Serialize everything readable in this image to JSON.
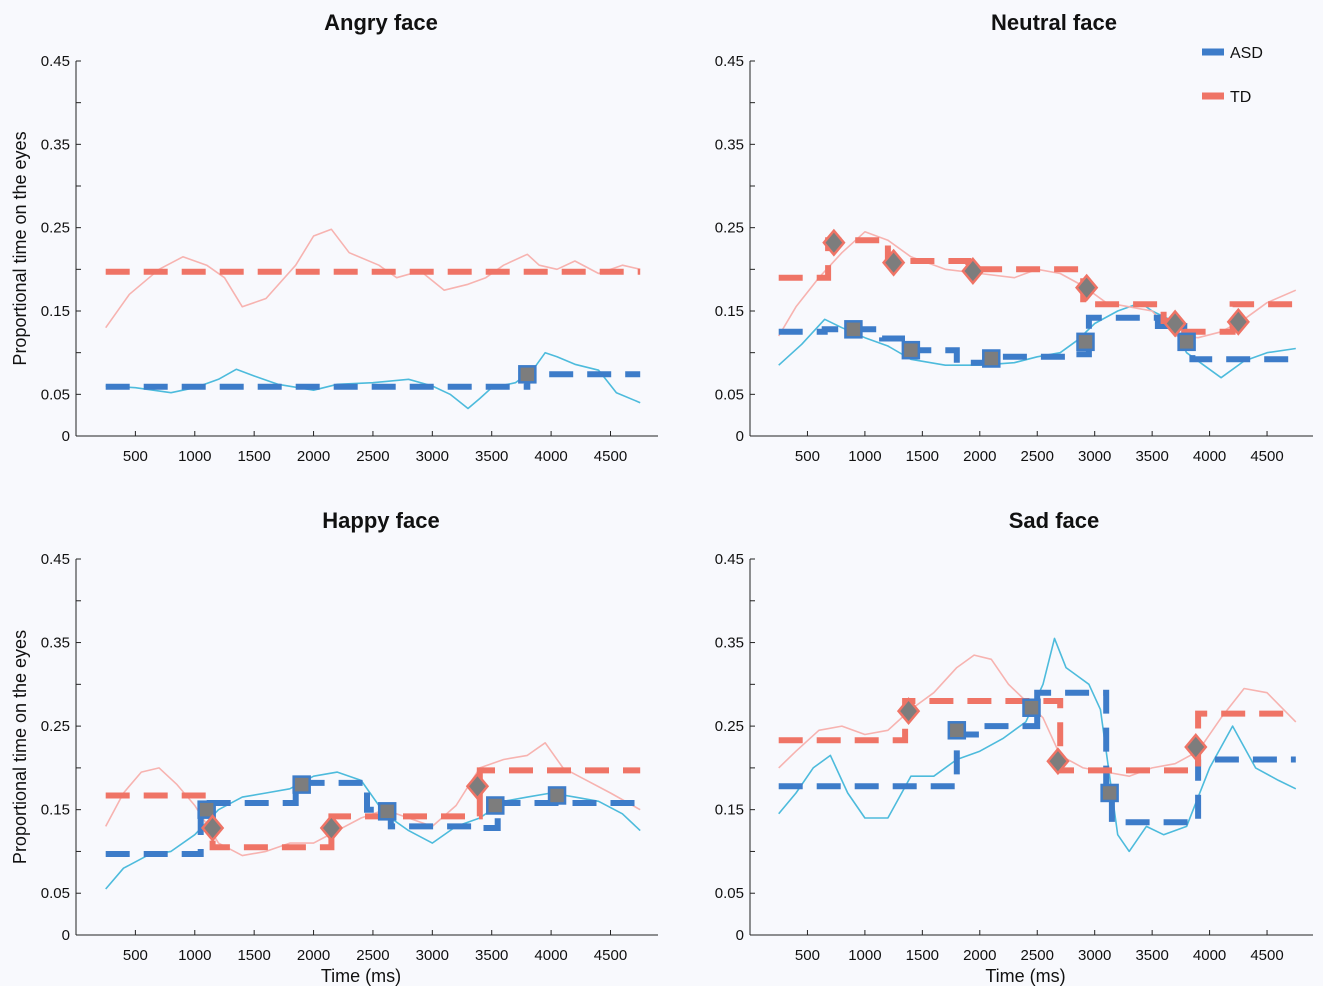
{
  "figure": {
    "ylabel": "Proportional time on the eyes",
    "xlabel": "Time (ms)",
    "legend": {
      "placement": "top-right of Neutral face panel",
      "entries": [
        {
          "name": "ASD",
          "color": "#3d7cc9"
        },
        {
          "name": "TD",
          "color": "#ef7466"
        }
      ]
    },
    "colors": {
      "asd_step": "#3d7cc9",
      "asd_raw": "#4dbbdc",
      "td_step": "#ef7466",
      "td_raw": "#f7b3b0",
      "marker_fill": "#7d7d7d",
      "background": "#f8f9fd"
    }
  },
  "chart_data": [
    {
      "type": "line",
      "title": "Angry face",
      "xlabel": "",
      "ylabel": "Proportional time on the eyes",
      "xlim": [
        0,
        4900
      ],
      "ylim": [
        0,
        0.45
      ],
      "xticks": [
        500,
        1000,
        1500,
        2000,
        2500,
        3000,
        3500,
        4000,
        4500
      ],
      "yticks": [
        0,
        0.05,
        0.15,
        0.25,
        0.35,
        0.45
      ],
      "grid": false,
      "series": [
        {
          "name": "ASD",
          "style": "dashed-step",
          "x": [
            250,
            3800,
            3800,
            4750
          ],
          "y": [
            0.059,
            0.059,
            0.074,
            0.074
          ],
          "markers": [
            {
              "x": 3800,
              "y": 0.074,
              "shape": "square"
            }
          ]
        },
        {
          "name": "TD",
          "style": "dashed-step",
          "x": [
            250,
            4750
          ],
          "y": [
            0.197,
            0.197
          ],
          "markers": []
        },
        {
          "style": "raw",
          "group": "ASD",
          "x": [
            250,
            500,
            800,
            1000,
            1200,
            1350,
            1500,
            1700,
            2000,
            2200,
            2500,
            2800,
            3000,
            3150,
            3300,
            3400,
            3500,
            3700,
            3850,
            3950,
            4050,
            4200,
            4400,
            4550,
            4750
          ],
          "y": [
            0.06,
            0.058,
            0.052,
            0.058,
            0.068,
            0.08,
            0.072,
            0.062,
            0.055,
            0.062,
            0.064,
            0.068,
            0.06,
            0.05,
            0.033,
            0.045,
            0.058,
            0.064,
            0.08,
            0.1,
            0.095,
            0.086,
            0.079,
            0.052,
            0.04
          ]
        },
        {
          "style": "raw",
          "group": "TD",
          "x": [
            250,
            450,
            700,
            900,
            1100,
            1250,
            1400,
            1600,
            1850,
            2000,
            2150,
            2300,
            2550,
            2700,
            2900,
            3100,
            3300,
            3450,
            3600,
            3800,
            3900,
            4050,
            4200,
            4400,
            4600,
            4750
          ],
          "y": [
            0.13,
            0.17,
            0.2,
            0.215,
            0.205,
            0.19,
            0.155,
            0.165,
            0.205,
            0.24,
            0.248,
            0.22,
            0.205,
            0.19,
            0.198,
            0.175,
            0.182,
            0.19,
            0.205,
            0.218,
            0.205,
            0.2,
            0.21,
            0.195,
            0.205,
            0.2
          ]
        }
      ]
    },
    {
      "type": "line",
      "title": "Neutral face",
      "xlabel": "",
      "ylabel": "",
      "xlim": [
        0,
        4900
      ],
      "ylim": [
        0,
        0.45
      ],
      "xticks": [
        500,
        1000,
        1500,
        2000,
        2500,
        3000,
        3500,
        4000,
        4500
      ],
      "yticks": [
        0,
        0.05,
        0.15,
        0.25,
        0.35,
        0.45
      ],
      "grid": false,
      "series": [
        {
          "name": "ASD",
          "style": "dashed-step",
          "x": [
            250,
            650,
            650,
            1150,
            1150,
            1400,
            1400,
            1800,
            1800,
            2100,
            2100,
            2800,
            2800,
            2950,
            2950,
            3550,
            3550,
            3780,
            3780,
            3850,
            3850,
            4750
          ],
          "y": [
            0.125,
            0.125,
            0.128,
            0.128,
            0.117,
            0.117,
            0.103,
            0.103,
            0.088,
            0.088,
            0.095,
            0.095,
            0.098,
            0.098,
            0.142,
            0.142,
            0.132,
            0.132,
            0.115,
            0.115,
            0.092,
            0.092
          ],
          "markers": [
            {
              "x": 900,
              "y": 0.128,
              "shape": "square"
            },
            {
              "x": 1400,
              "y": 0.103,
              "shape": "square"
            },
            {
              "x": 2100,
              "y": 0.093,
              "shape": "square"
            },
            {
              "x": 2920,
              "y": 0.113,
              "shape": "square"
            },
            {
              "x": 3800,
              "y": 0.113,
              "shape": "square"
            }
          ]
        },
        {
          "name": "TD",
          "style": "dashed-step",
          "x": [
            250,
            680,
            680,
            1200,
            1200,
            1900,
            1900,
            2900,
            2900,
            3600,
            3600,
            3780,
            3780,
            4200,
            4200,
            4750
          ],
          "y": [
            0.19,
            0.19,
            0.235,
            0.235,
            0.21,
            0.21,
            0.2,
            0.2,
            0.158,
            0.158,
            0.138,
            0.138,
            0.125,
            0.125,
            0.158,
            0.158
          ],
          "markers": [
            {
              "x": 730,
              "y": 0.232,
              "shape": "diamond"
            },
            {
              "x": 1250,
              "y": 0.208,
              "shape": "diamond"
            },
            {
              "x": 1940,
              "y": 0.198,
              "shape": "diamond"
            },
            {
              "x": 2930,
              "y": 0.178,
              "shape": "diamond"
            },
            {
              "x": 3700,
              "y": 0.135,
              "shape": "diamond"
            },
            {
              "x": 4250,
              "y": 0.137,
              "shape": "diamond"
            }
          ]
        },
        {
          "style": "raw",
          "group": "ASD",
          "x": [
            250,
            450,
            650,
            800,
            1000,
            1200,
            1400,
            1700,
            2000,
            2300,
            2500,
            2700,
            2850,
            3000,
            3200,
            3400,
            3500,
            3650,
            3800,
            3950,
            4100,
            4300,
            4500,
            4750
          ],
          "y": [
            0.085,
            0.11,
            0.14,
            0.13,
            0.118,
            0.108,
            0.092,
            0.085,
            0.085,
            0.088,
            0.095,
            0.1,
            0.115,
            0.135,
            0.15,
            0.16,
            0.15,
            0.14,
            0.1,
            0.085,
            0.07,
            0.09,
            0.1,
            0.105
          ]
        },
        {
          "style": "raw",
          "group": "TD",
          "x": [
            250,
            400,
            600,
            800,
            1000,
            1200,
            1400,
            1700,
            2000,
            2300,
            2500,
            2700,
            2900,
            3100,
            3300,
            3500,
            3700,
            3900,
            4100,
            4300,
            4500,
            4750
          ],
          "y": [
            0.12,
            0.155,
            0.19,
            0.22,
            0.245,
            0.235,
            0.215,
            0.2,
            0.195,
            0.19,
            0.2,
            0.195,
            0.18,
            0.16,
            0.155,
            0.15,
            0.12,
            0.118,
            0.125,
            0.14,
            0.16,
            0.175
          ]
        }
      ]
    },
    {
      "type": "line",
      "title": "Happy face",
      "xlabel": "Time (ms)",
      "ylabel": "Proportional time on the eyes",
      "xlim": [
        0,
        4900
      ],
      "ylim": [
        0,
        0.45
      ],
      "xticks": [
        500,
        1000,
        1500,
        2000,
        2500,
        3000,
        3500,
        4000,
        4500
      ],
      "yticks": [
        0,
        0.05,
        0.15,
        0.25,
        0.35,
        0.45
      ],
      "grid": false,
      "series": [
        {
          "name": "ASD",
          "style": "dashed-step",
          "x": [
            250,
            1050,
            1050,
            1650,
            1650,
            1850,
            1850,
            2450,
            2450,
            2650,
            2650,
            2850,
            2850,
            3350,
            3350,
            3550,
            3550,
            4750
          ],
          "y": [
            0.097,
            0.097,
            0.158,
            0.158,
            0.158,
            0.158,
            0.182,
            0.182,
            0.15,
            0.15,
            0.13,
            0.13,
            0.13,
            0.13,
            0.128,
            0.128,
            0.158,
            0.158
          ],
          "markers": [
            {
              "x": 1100,
              "y": 0.15,
              "shape": "square"
            },
            {
              "x": 1900,
              "y": 0.18,
              "shape": "square"
            },
            {
              "x": 2620,
              "y": 0.148,
              "shape": "square"
            },
            {
              "x": 3530,
              "y": 0.155,
              "shape": "square"
            },
            {
              "x": 4050,
              "y": 0.167,
              "shape": "square"
            }
          ]
        },
        {
          "name": "TD",
          "style": "dashed-step",
          "x": [
            250,
            1150,
            1150,
            2150,
            2150,
            3400,
            3400,
            4750
          ],
          "y": [
            0.167,
            0.167,
            0.105,
            0.105,
            0.142,
            0.142,
            0.197,
            0.197
          ],
          "markers": [
            {
              "x": 1150,
              "y": 0.128,
              "shape": "diamond"
            },
            {
              "x": 2150,
              "y": 0.128,
              "shape": "diamond"
            },
            {
              "x": 3380,
              "y": 0.178,
              "shape": "diamond"
            }
          ]
        },
        {
          "style": "raw",
          "group": "ASD",
          "x": [
            250,
            400,
            600,
            800,
            1000,
            1200,
            1400,
            1600,
            1800,
            2000,
            2200,
            2400,
            2600,
            2800,
            3000,
            3200,
            3400,
            3600,
            3800,
            4000,
            4200,
            4400,
            4600,
            4750
          ],
          "y": [
            0.055,
            0.08,
            0.095,
            0.1,
            0.12,
            0.15,
            0.165,
            0.17,
            0.175,
            0.19,
            0.195,
            0.185,
            0.145,
            0.125,
            0.11,
            0.13,
            0.14,
            0.16,
            0.165,
            0.17,
            0.165,
            0.16,
            0.145,
            0.125
          ]
        },
        {
          "style": "raw",
          "group": "TD",
          "x": [
            250,
            400,
            550,
            700,
            850,
            1000,
            1200,
            1400,
            1600,
            1800,
            2000,
            2200,
            2400,
            2600,
            2800,
            3000,
            3200,
            3400,
            3600,
            3800,
            3950,
            4100,
            4300,
            4500,
            4750
          ],
          "y": [
            0.13,
            0.17,
            0.195,
            0.2,
            0.18,
            0.155,
            0.11,
            0.095,
            0.1,
            0.11,
            0.11,
            0.125,
            0.14,
            0.15,
            0.14,
            0.13,
            0.155,
            0.2,
            0.21,
            0.215,
            0.23,
            0.2,
            0.185,
            0.17,
            0.15
          ]
        }
      ]
    },
    {
      "type": "line",
      "title": "Sad face",
      "xlabel": "Time (ms)",
      "ylabel": "",
      "xlim": [
        0,
        4900
      ],
      "ylim": [
        0,
        0.45
      ],
      "xticks": [
        500,
        1000,
        1500,
        2000,
        2500,
        3000,
        3500,
        4000,
        4500
      ],
      "yticks": [
        0,
        0.05,
        0.15,
        0.25,
        0.35,
        0.45
      ],
      "grid": false,
      "series": [
        {
          "name": "ASD",
          "style": "dashed-step",
          "x": [
            250,
            1800,
            1800,
            2000,
            2000,
            2500,
            2500,
            3100,
            3100,
            3150,
            3150,
            3900,
            3900,
            4750
          ],
          "y": [
            0.178,
            0.178,
            0.24,
            0.24,
            0.25,
            0.25,
            0.29,
            0.29,
            0.168,
            0.168,
            0.135,
            0.135,
            0.21,
            0.21
          ],
          "markers": [
            {
              "x": 1800,
              "y": 0.245,
              "shape": "square"
            },
            {
              "x": 2450,
              "y": 0.272,
              "shape": "square"
            },
            {
              "x": 3130,
              "y": 0.17,
              "shape": "square"
            }
          ]
        },
        {
          "name": "TD",
          "style": "dashed-step",
          "x": [
            250,
            1350,
            1350,
            2700,
            2700,
            3900,
            3900,
            4750
          ],
          "y": [
            0.233,
            0.233,
            0.28,
            0.28,
            0.197,
            0.197,
            0.265,
            0.265
          ],
          "markers": [
            {
              "x": 1380,
              "y": 0.268,
              "shape": "diamond"
            },
            {
              "x": 2680,
              "y": 0.208,
              "shape": "diamond"
            },
            {
              "x": 3880,
              "y": 0.225,
              "shape": "diamond"
            }
          ]
        },
        {
          "style": "raw",
          "group": "ASD",
          "x": [
            250,
            400,
            550,
            700,
            850,
            1000,
            1200,
            1400,
            1600,
            1800,
            2000,
            2200,
            2400,
            2550,
            2650,
            2750,
            2850,
            2950,
            3050,
            3200,
            3300,
            3450,
            3600,
            3800,
            4000,
            4200,
            4400,
            4600,
            4750
          ],
          "y": [
            0.145,
            0.17,
            0.2,
            0.215,
            0.17,
            0.14,
            0.14,
            0.19,
            0.19,
            0.21,
            0.22,
            0.235,
            0.255,
            0.3,
            0.355,
            0.32,
            0.31,
            0.3,
            0.27,
            0.12,
            0.1,
            0.13,
            0.12,
            0.13,
            0.2,
            0.25,
            0.2,
            0.185,
            0.175
          ]
        },
        {
          "style": "raw",
          "group": "TD",
          "x": [
            250,
            400,
            600,
            800,
            1000,
            1200,
            1400,
            1600,
            1800,
            1950,
            2100,
            2250,
            2400,
            2550,
            2700,
            2900,
            3100,
            3300,
            3500,
            3700,
            3900,
            4100,
            4300,
            4500,
            4750
          ],
          "y": [
            0.2,
            0.22,
            0.245,
            0.25,
            0.24,
            0.245,
            0.27,
            0.29,
            0.32,
            0.335,
            0.33,
            0.3,
            0.28,
            0.26,
            0.215,
            0.2,
            0.195,
            0.19,
            0.2,
            0.205,
            0.22,
            0.26,
            0.295,
            0.29,
            0.255
          ]
        }
      ]
    }
  ]
}
